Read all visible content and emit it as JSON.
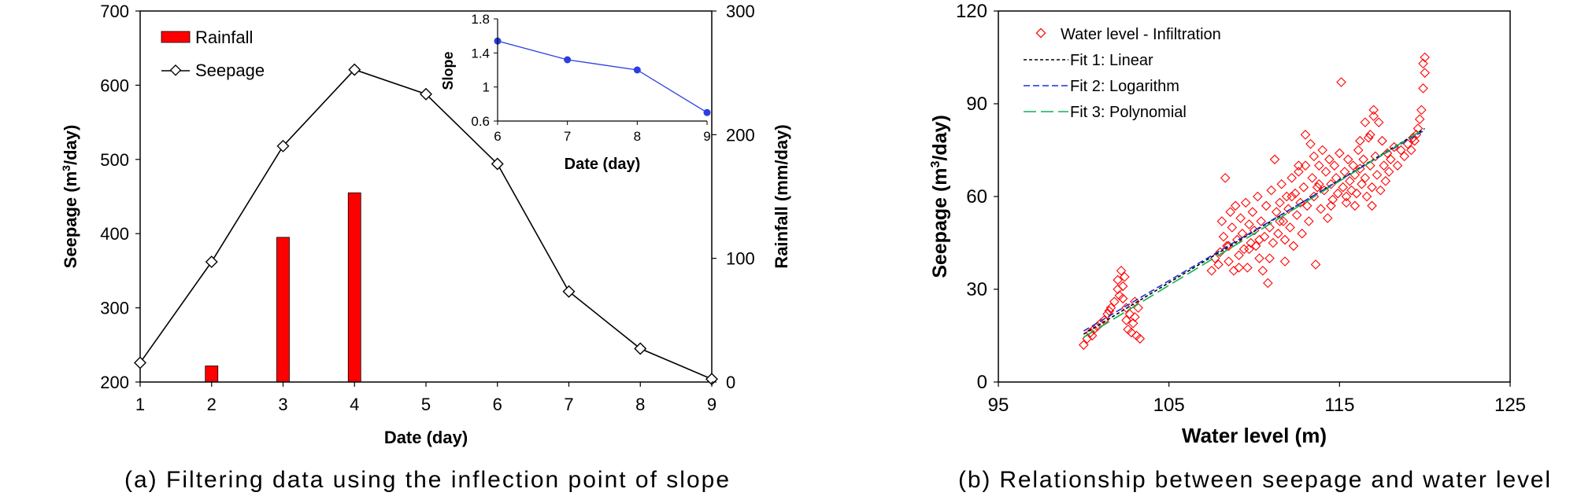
{
  "chart_data": [
    {
      "panel": "a",
      "caption": "(a) Filtering data using the inflection point of slope",
      "type": "bar+line",
      "xlabel": "Date (day)",
      "ylabel_left": "Seepage (m",
      "ylabel_left_sup": "3",
      "ylabel_left_end": "/day)",
      "ylabel_right": "Rainfall (mm/day)",
      "categories": [
        1,
        2,
        3,
        4,
        5,
        6,
        7,
        8,
        9
      ],
      "ylim_left": [
        200,
        700
      ],
      "yticks_left": [
        200,
        300,
        400,
        500,
        600,
        700
      ],
      "ylim_right": [
        0,
        300
      ],
      "yticks_right": [
        0,
        100,
        200,
        300
      ],
      "legend": {
        "placement": "top-left",
        "entries": [
          "Rainfall",
          "Seepage"
        ]
      },
      "series": [
        {
          "name": "Rainfall",
          "type": "bar",
          "axis": "right",
          "color": "#ff0000",
          "x": [
            2,
            3,
            4
          ],
          "values": [
            13,
            117,
            153
          ]
        },
        {
          "name": "Seepage",
          "type": "line",
          "axis": "left",
          "marker": "diamond",
          "color": "#000000",
          "x": [
            1,
            2,
            3,
            4,
            5,
            6,
            7,
            8,
            9
          ],
          "values": [
            226,
            362,
            518,
            621,
            588,
            494,
            322,
            245,
            204
          ]
        }
      ],
      "inset": {
        "type": "line",
        "xlabel": "Date (day)",
        "ylabel": "Slope",
        "x": [
          6,
          7,
          8,
          9
        ],
        "values": [
          1.54,
          1.32,
          1.2,
          0.7
        ],
        "xlim": [
          6,
          9
        ],
        "ylim": [
          0.6,
          1.8
        ],
        "yticks": [
          "0.6",
          "1",
          "1.4",
          "1.8"
        ],
        "color": "#2b3fe0"
      }
    },
    {
      "panel": "b",
      "caption": "(b) Relationship between seepage and water level",
      "type": "scatter",
      "xlabel": "Water level (m)",
      "ylabel": "Seepage (m",
      "ylabel_sup": "3",
      "ylabel_end": "/day)",
      "xlim": [
        95,
        125
      ],
      "xticks": [
        95,
        105,
        115,
        125
      ],
      "ylim": [
        0,
        120
      ],
      "yticks": [
        0,
        30,
        60,
        90,
        120
      ],
      "legend": {
        "placement": "top-left",
        "entries": [
          "Water level - Infiltration",
          "Fit 1: Linear",
          "Fit 2: Logarithm",
          "Fit 3: Polynomial"
        ]
      },
      "scatter": {
        "name": "Water level - Infiltration",
        "color": "#ff0000",
        "marker": "diamond-open",
        "points": [
          [
            100.0,
            12
          ],
          [
            100.2,
            14
          ],
          [
            100.4,
            16
          ],
          [
            100.6,
            17
          ],
          [
            100.8,
            18
          ],
          [
            101.0,
            19
          ],
          [
            101.2,
            20
          ],
          [
            101.4,
            22
          ],
          [
            101.6,
            24
          ],
          [
            101.8,
            26
          ],
          [
            102.0,
            30
          ],
          [
            102.0,
            33
          ],
          [
            102.1,
            28
          ],
          [
            102.2,
            36
          ],
          [
            102.3,
            31
          ],
          [
            102.4,
            34
          ],
          [
            102.5,
            24
          ],
          [
            102.5,
            20
          ],
          [
            102.6,
            17
          ],
          [
            102.7,
            22
          ],
          [
            102.8,
            16
          ],
          [
            102.9,
            19
          ],
          [
            103.0,
            21
          ],
          [
            103.1,
            15
          ],
          [
            103.2,
            24
          ],
          [
            103.3,
            14
          ],
          [
            103.0,
            26
          ],
          [
            102.3,
            27
          ],
          [
            101.5,
            23
          ],
          [
            100.5,
            15
          ],
          [
            107.5,
            36
          ],
          [
            107.7,
            40
          ],
          [
            107.9,
            38
          ],
          [
            108.0,
            42
          ],
          [
            108.1,
            52
          ],
          [
            108.2,
            47
          ],
          [
            108.3,
            66
          ],
          [
            108.4,
            44
          ],
          [
            108.5,
            39
          ],
          [
            108.6,
            55
          ],
          [
            108.7,
            50
          ],
          [
            108.8,
            36
          ],
          [
            108.9,
            57
          ],
          [
            109.0,
            46
          ],
          [
            109.1,
            41
          ],
          [
            109.2,
            53
          ],
          [
            109.3,
            48
          ],
          [
            109.4,
            43
          ],
          [
            109.5,
            58
          ],
          [
            109.6,
            37
          ],
          [
            109.7,
            51
          ],
          [
            109.8,
            45
          ],
          [
            109.9,
            55
          ],
          [
            110.0,
            49
          ],
          [
            110.1,
            44
          ],
          [
            110.2,
            60
          ],
          [
            110.3,
            40
          ],
          [
            110.4,
            52
          ],
          [
            110.5,
            36
          ],
          [
            110.6,
            47
          ],
          [
            110.7,
            57
          ],
          [
            110.8,
            32
          ],
          [
            110.9,
            50
          ],
          [
            111.0,
            62
          ],
          [
            111.1,
            45
          ],
          [
            111.2,
            72
          ],
          [
            111.3,
            55
          ],
          [
            111.4,
            48
          ],
          [
            111.5,
            58
          ],
          [
            111.6,
            64
          ],
          [
            111.7,
            52
          ],
          [
            111.8,
            46
          ],
          [
            111.9,
            60
          ],
          [
            112.0,
            56
          ],
          [
            112.1,
            50
          ],
          [
            112.2,
            66
          ],
          [
            112.3,
            44
          ],
          [
            112.4,
            61
          ],
          [
            112.5,
            54
          ],
          [
            112.6,
            68
          ],
          [
            112.7,
            58
          ],
          [
            112.8,
            48
          ],
          [
            112.9,
            63
          ],
          [
            113.0,
            80
          ],
          [
            113.1,
            57
          ],
          [
            113.2,
            52
          ],
          [
            113.3,
            77
          ],
          [
            113.4,
            66
          ],
          [
            113.5,
            60
          ],
          [
            113.6,
            38
          ],
          [
            113.7,
            63
          ],
          [
            113.8,
            70
          ],
          [
            113.9,
            56
          ],
          [
            114.0,
            75
          ],
          [
            114.1,
            62
          ],
          [
            114.2,
            68
          ],
          [
            114.3,
            53
          ],
          [
            114.4,
            72
          ],
          [
            114.5,
            64
          ],
          [
            114.6,
            59
          ],
          [
            114.7,
            70
          ],
          [
            114.8,
            66
          ],
          [
            114.9,
            61
          ],
          [
            115.0,
            74
          ],
          [
            115.1,
            97
          ],
          [
            115.2,
            63
          ],
          [
            115.3,
            68
          ],
          [
            115.4,
            58
          ],
          [
            115.5,
            72
          ],
          [
            115.6,
            65
          ],
          [
            115.7,
            62
          ],
          [
            115.8,
            70
          ],
          [
            115.9,
            67
          ],
          [
            116.0,
            61
          ],
          [
            116.1,
            75
          ],
          [
            116.2,
            69
          ],
          [
            116.3,
            64
          ],
          [
            116.4,
            72
          ],
          [
            116.5,
            66
          ],
          [
            116.6,
            60
          ],
          [
            116.7,
            79
          ],
          [
            116.8,
            70
          ],
          [
            116.9,
            63
          ],
          [
            117.0,
            88
          ],
          [
            117.1,
            73
          ],
          [
            117.2,
            67
          ],
          [
            117.3,
            84
          ],
          [
            117.4,
            62
          ],
          [
            117.5,
            78
          ],
          [
            117.6,
            70
          ],
          [
            117.7,
            65
          ],
          [
            117.8,
            74
          ],
          [
            117.9,
            68
          ],
          [
            118.0,
            72
          ],
          [
            118.2,
            76
          ],
          [
            118.4,
            70
          ],
          [
            118.6,
            75
          ],
          [
            118.8,
            73
          ],
          [
            119.0,
            77
          ],
          [
            119.2,
            75
          ],
          [
            119.4,
            78
          ],
          [
            119.6,
            82
          ],
          [
            119.8,
            88
          ],
          [
            119.9,
            95
          ],
          [
            120.0,
            100
          ],
          [
            120.0,
            105
          ],
          [
            119.9,
            103
          ],
          [
            119.7,
            85
          ],
          [
            119.5,
            80
          ],
          [
            119.3,
            79
          ],
          [
            116.5,
            84
          ],
          [
            116.8,
            80
          ],
          [
            117.0,
            86
          ],
          [
            116.2,
            78
          ],
          [
            115.4,
            60
          ],
          [
            114.5,
            57
          ],
          [
            113.8,
            64
          ],
          [
            113.0,
            70
          ],
          [
            112.2,
            60
          ],
          [
            111.5,
            52
          ],
          [
            110.9,
            40
          ],
          [
            110.3,
            46
          ],
          [
            109.7,
            43
          ],
          [
            109.1,
            37
          ],
          [
            108.5,
            44
          ],
          [
            111.8,
            39
          ],
          [
            113.5,
            73
          ],
          [
            112.6,
            70
          ],
          [
            115.9,
            57
          ],
          [
            116.9,
            57
          ]
        ]
      },
      "fits": [
        {
          "name": "Fit 1: Linear",
          "color": "#000000",
          "dash": "short",
          "x": [
            100,
            120
          ],
          "y": [
            15.5,
            82
          ]
        },
        {
          "name": "Fit 2: Logarithm",
          "color": "#1f2fd8",
          "dash": "medium",
          "x": [
            100,
            120
          ],
          "y": [
            16.5,
            81.5
          ]
        },
        {
          "name": "Fit 3: Polynomial",
          "color": "#10b050",
          "dash": "long",
          "x": [
            100,
            110,
            120
          ],
          "y": [
            14.5,
            48,
            82
          ]
        }
      ]
    }
  ]
}
